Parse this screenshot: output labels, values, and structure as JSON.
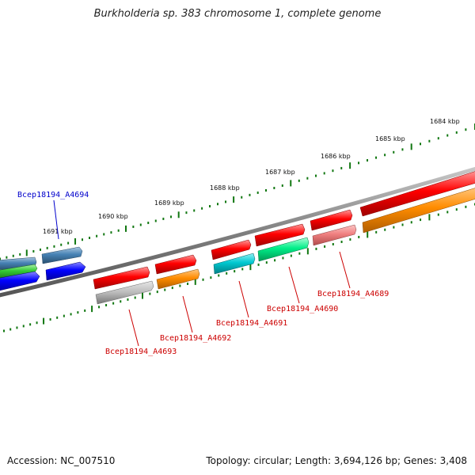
{
  "title": "Burkholderia sp. 383 chromosome 1, complete genome",
  "footer": {
    "accession": "Accession: NC_007510",
    "topology": "Topology: circular; Length: 3,694,126 bp; Genes: 3,408"
  },
  "ruler_labels": [
    "1684 kbp",
    "1685 kbp",
    "1686 kbp",
    "1687 kbp",
    "1688 kbp",
    "1689 kbp",
    "1690 kbp",
    "1691 kbp"
  ],
  "gene_labels": [
    {
      "text": "Bcep18194_A4694",
      "color": "#0000cc"
    },
    {
      "text": "Bcep18194_A4693",
      "color": "#cc0000"
    },
    {
      "text": "Bcep18194_A4692",
      "color": "#cc0000"
    },
    {
      "text": "Bcep18194_A4691",
      "color": "#cc0000"
    },
    {
      "text": "Bcep18194_A4690",
      "color": "#cc0000"
    },
    {
      "text": "Bcep18194_A4689",
      "color": "#cc0000"
    }
  ],
  "colors": {
    "backbone": "#808080",
    "ticks": "#117711",
    "red": "#ff0000",
    "blue": "#0000ff",
    "steelblue": "#4682b4",
    "green": "#33cc33",
    "gray": "#bbbbbb",
    "orange": "#ff8c00",
    "cyan": "#00c8d0",
    "springgreen": "#00ee88",
    "pink": "#f08080"
  }
}
